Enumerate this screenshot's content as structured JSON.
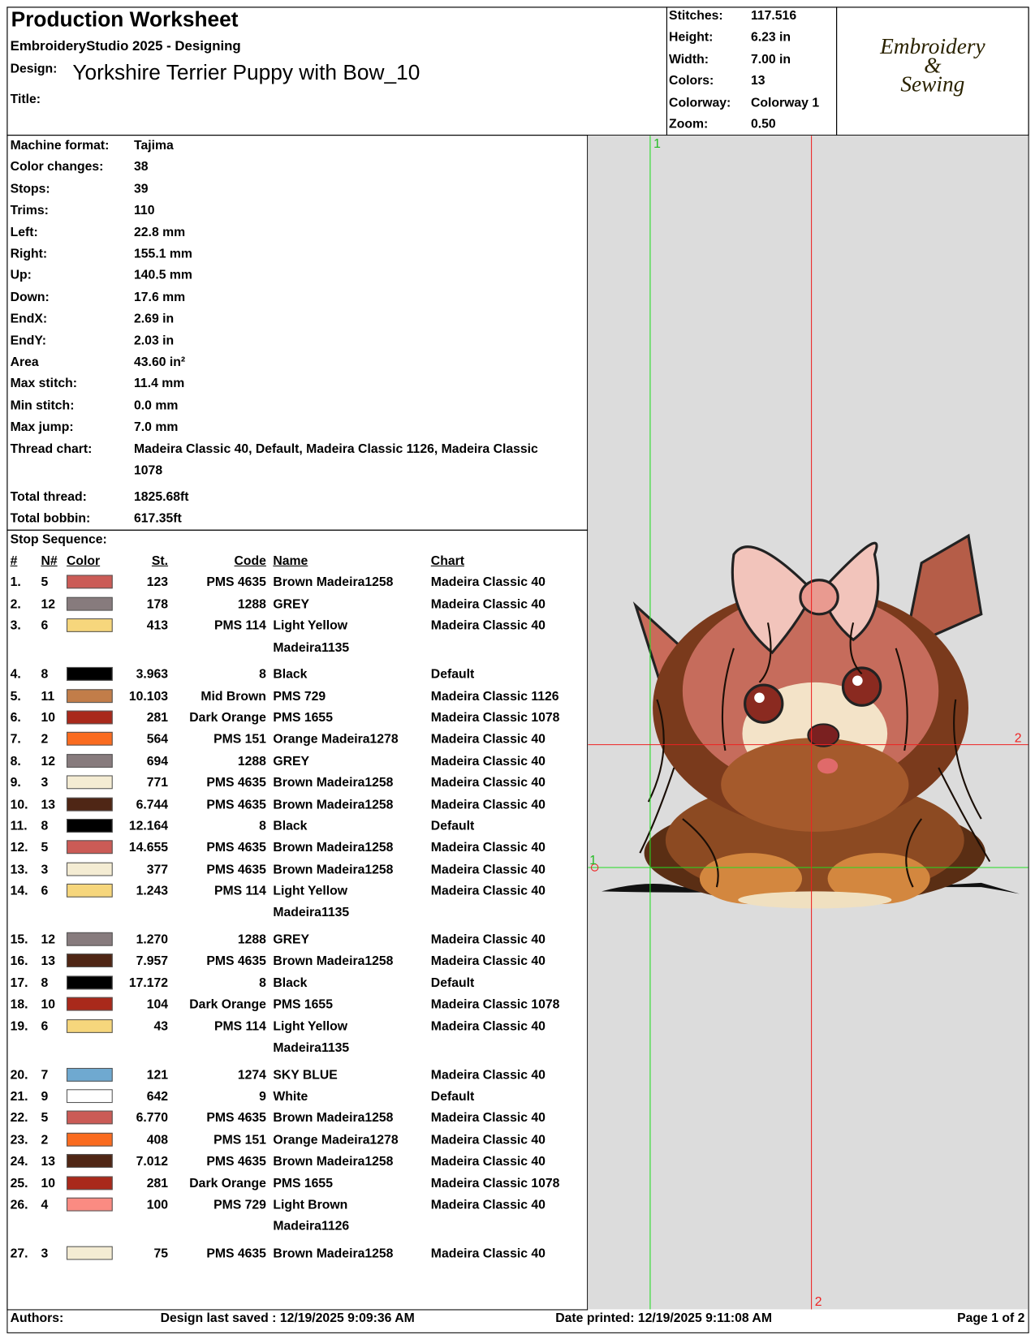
{
  "header": {
    "title": "Production Worksheet",
    "subtitle": "EmbroideryStudio 2025 - Designing",
    "design_label": "Design:",
    "design": "Yorkshire Terrier Puppy with Bow_10",
    "title_label": "Title:"
  },
  "stats": [
    {
      "label": "Stitches:",
      "value": "117.516"
    },
    {
      "label": "Height:",
      "value": "6.23 in"
    },
    {
      "label": "Width:",
      "value": "7.00 in"
    },
    {
      "label": "Colors:",
      "value": "13"
    },
    {
      "label": "Colorway:",
      "value": "Colorway 1"
    },
    {
      "label": "Zoom:",
      "value": "0.50"
    }
  ],
  "logo": [
    "Embroidery",
    "&",
    "Sewing"
  ],
  "info": [
    {
      "label": "Machine format:",
      "value": "Tajima"
    },
    {
      "label": "Color changes:",
      "value": "38"
    },
    {
      "label": "Stops:",
      "value": "39"
    },
    {
      "label": "Trims:",
      "value": "110"
    },
    {
      "label": "Left:",
      "value": "22.8 mm"
    },
    {
      "label": "Right:",
      "value": "155.1 mm"
    },
    {
      "label": "Up:",
      "value": "140.5 mm"
    },
    {
      "label": "Down:",
      "value": "17.6 mm"
    },
    {
      "label": "EndX:",
      "value": "2.69 in"
    },
    {
      "label": "EndY:",
      "value": "2.03 in"
    },
    {
      "label": "Area",
      "value": "43.60 in²"
    },
    {
      "label": "Max stitch:",
      "value": "11.4 mm"
    },
    {
      "label": "Min stitch:",
      "value": "0.0 mm"
    },
    {
      "label": "Max jump:",
      "value": "7.0 mm"
    },
    {
      "label": "Thread chart:",
      "value": "Madeira Classic 40, Default, Madeira Classic 1126, Madeira Classic 1078"
    },
    {
      "label": "Total thread:",
      "value": "1825.68ft"
    },
    {
      "label": "Total bobbin:",
      "value": "617.35ft"
    }
  ],
  "stop_sequence": {
    "label": "Stop Sequence:",
    "columns": [
      "#",
      "N#",
      "Color",
      "St.",
      "Code",
      "Name",
      "Chart"
    ],
    "rows": [
      {
        "index": "1.",
        "needle": "5",
        "color": "#cb5b56",
        "stitches": "123",
        "code": "PMS 4635",
        "name": "Brown Madeira1258",
        "chart": "Madeira Classic 40"
      },
      {
        "index": "2.",
        "needle": "12",
        "color": "#877b7d",
        "stitches": "178",
        "code": "1288",
        "name": "GREY",
        "chart": "Madeira Classic 40"
      },
      {
        "index": "3.",
        "needle": "6",
        "color": "#f6d67c",
        "stitches": "413",
        "code": "PMS 114",
        "name": "Light Yellow Madeira1135",
        "chart": "Madeira Classic 40"
      },
      {
        "index": "4.",
        "needle": "8",
        "color": "#000000",
        "stitches": "3.963",
        "code": "8",
        "name": "Black",
        "chart": "Default"
      },
      {
        "index": "5.",
        "needle": "11",
        "color": "#c27d49",
        "stitches": "10.103",
        "code": "Mid Brown",
        "name": "PMS 729",
        "chart": "Madeira Classic 1126"
      },
      {
        "index": "6.",
        "needle": "10",
        "color": "#a9291b",
        "stitches": "281",
        "code": "Dark Orange",
        "name": "PMS 1655",
        "chart": "Madeira Classic 1078"
      },
      {
        "index": "7.",
        "needle": "2",
        "color": "#fa6b1f",
        "stitches": "564",
        "code": "PMS 151",
        "name": "Orange Madeira1278",
        "chart": "Madeira Classic 40"
      },
      {
        "index": "8.",
        "needle": "12",
        "color": "#877b7d",
        "stitches": "694",
        "code": "1288",
        "name": "GREY",
        "chart": "Madeira Classic 40"
      },
      {
        "index": "9.",
        "needle": "3",
        "color": "#f4ecd3",
        "stitches": "771",
        "code": "PMS 4635",
        "name": "Brown Madeira1258",
        "chart": "Madeira Classic 40"
      },
      {
        "index": "10.",
        "needle": "13",
        "color": "#4f2615",
        "stitches": "6.744",
        "code": "PMS 4635",
        "name": "Brown Madeira1258",
        "chart": "Madeira Classic 40"
      },
      {
        "index": "11.",
        "needle": "8",
        "color": "#000000",
        "stitches": "12.164",
        "code": "8",
        "name": "Black",
        "chart": "Default"
      },
      {
        "index": "12.",
        "needle": "5",
        "color": "#cb5b56",
        "stitches": "14.655",
        "code": "PMS 4635",
        "name": "Brown Madeira1258",
        "chart": "Madeira Classic 40"
      },
      {
        "index": "13.",
        "needle": "3",
        "color": "#f4ecd3",
        "stitches": "377",
        "code": "PMS 4635",
        "name": "Brown Madeira1258",
        "chart": "Madeira Classic 40"
      },
      {
        "index": "14.",
        "needle": "6",
        "color": "#f6d67c",
        "stitches": "1.243",
        "code": "PMS 114",
        "name": "Light Yellow Madeira1135",
        "chart": "Madeira Classic 40"
      },
      {
        "index": "15.",
        "needle": "12",
        "color": "#877b7d",
        "stitches": "1.270",
        "code": "1288",
        "name": "GREY",
        "chart": "Madeira Classic 40"
      },
      {
        "index": "16.",
        "needle": "13",
        "color": "#4f2615",
        "stitches": "7.957",
        "code": "PMS 4635",
        "name": "Brown Madeira1258",
        "chart": "Madeira Classic 40"
      },
      {
        "index": "17.",
        "needle": "8",
        "color": "#000000",
        "stitches": "17.172",
        "code": "8",
        "name": "Black",
        "chart": "Default"
      },
      {
        "index": "18.",
        "needle": "10",
        "color": "#a9291b",
        "stitches": "104",
        "code": "Dark Orange",
        "name": "PMS 1655",
        "chart": "Madeira Classic 1078"
      },
      {
        "index": "19.",
        "needle": "6",
        "color": "#f6d67c",
        "stitches": "43",
        "code": "PMS 114",
        "name": "Light Yellow Madeira1135",
        "chart": "Madeira Classic 40"
      },
      {
        "index": "20.",
        "needle": "7",
        "color": "#6fa9d0",
        "stitches": "121",
        "code": "1274",
        "name": "SKY BLUE",
        "chart": "Madeira Classic 40"
      },
      {
        "index": "21.",
        "needle": "9",
        "color": "#ffffff",
        "stitches": "642",
        "code": "9",
        "name": "White",
        "chart": "Default"
      },
      {
        "index": "22.",
        "needle": "5",
        "color": "#cb5b56",
        "stitches": "6.770",
        "code": "PMS 4635",
        "name": "Brown Madeira1258",
        "chart": "Madeira Classic 40"
      },
      {
        "index": "23.",
        "needle": "2",
        "color": "#fa6b1f",
        "stitches": "408",
        "code": "PMS 151",
        "name": "Orange Madeira1278",
        "chart": "Madeira Classic 40"
      },
      {
        "index": "24.",
        "needle": "13",
        "color": "#4f2615",
        "stitches": "7.012",
        "code": "PMS 4635",
        "name": "Brown Madeira1258",
        "chart": "Madeira Classic 40"
      },
      {
        "index": "25.",
        "needle": "10",
        "color": "#a9291b",
        "stitches": "281",
        "code": "Dark Orange",
        "name": "PMS 1655",
        "chart": "Madeira Classic 1078"
      },
      {
        "index": "26.",
        "needle": "4",
        "color": "#fa8b82",
        "stitches": "100",
        "code": "PMS 729",
        "name": "Light Brown Madeira1126",
        "chart": "Madeira Classic 40"
      },
      {
        "index": "27.",
        "needle": "3",
        "color": "#f4ecd3",
        "stitches": "75",
        "code": "PMS 4635",
        "name": "Brown Madeira1258",
        "chart": "Madeira Classic 40"
      }
    ]
  },
  "preview": {
    "markers": [
      "1",
      "2",
      "1",
      "2"
    ]
  },
  "footer": {
    "authors": "Authors:",
    "saved": "Design last saved : 12/19/2025 9:09:36 AM",
    "printed": "Date printed: 12/19/2025 9:11:08 AM",
    "page": "Page 1 of 2"
  }
}
